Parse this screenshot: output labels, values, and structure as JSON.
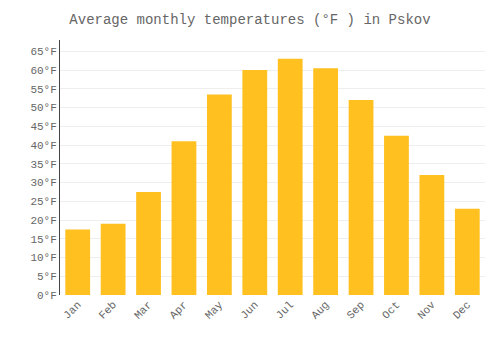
{
  "chart_data": {
    "type": "bar",
    "title": "Average monthly temperatures (°F ) in Pskov",
    "categories": [
      "Jan",
      "Feb",
      "Mar",
      "Apr",
      "May",
      "Jun",
      "Jul",
      "Aug",
      "Sep",
      "Oct",
      "Nov",
      "Dec"
    ],
    "values": [
      17.5,
      19.0,
      27.5,
      41.0,
      53.5,
      60.0,
      63.0,
      60.5,
      52.0,
      42.5,
      32.0,
      23.0
    ],
    "color": "#FFC020",
    "ylim": [
      0,
      68
    ],
    "yticks": [
      {
        "value": 0,
        "label": "0°F"
      },
      {
        "value": 5,
        "label": "5°F"
      },
      {
        "value": 10,
        "label": "10°F"
      },
      {
        "value": 15,
        "label": "15°F"
      },
      {
        "value": 20,
        "label": "20°F"
      },
      {
        "value": 25,
        "label": "25°F"
      },
      {
        "value": 30,
        "label": "30°F"
      },
      {
        "value": 35,
        "label": "35°F"
      },
      {
        "value": 40,
        "label": "40°F"
      },
      {
        "value": 45,
        "label": "45°F"
      },
      {
        "value": 50,
        "label": "50°F"
      },
      {
        "value": 55,
        "label": "55°F"
      },
      {
        "value": 60,
        "label": "60°F"
      },
      {
        "value": 65,
        "label": "65°F"
      }
    ],
    "grid": true
  }
}
